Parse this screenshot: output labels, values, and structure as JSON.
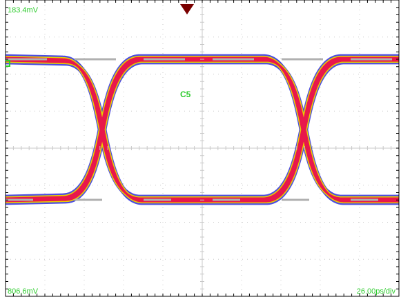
{
  "scope": {
    "top_level": "183.4mV",
    "bottom_level": "806.6mV",
    "timebase": "26.00ps/div",
    "channel_label": "C5",
    "trigger_marker": "trigger-marker-icon",
    "ground_marker": "ground-level-marker-icon"
  },
  "colors": {
    "background": "#ffffff",
    "grid": "#c8c8c8",
    "axis": "#000000",
    "label": "#2ecc2e",
    "trigger": "#7a0000",
    "density_low": "#3a3adf",
    "density_mid": "#e8d000",
    "density_high": "#e8174c",
    "density_peak": "#b0b0b0"
  }
}
